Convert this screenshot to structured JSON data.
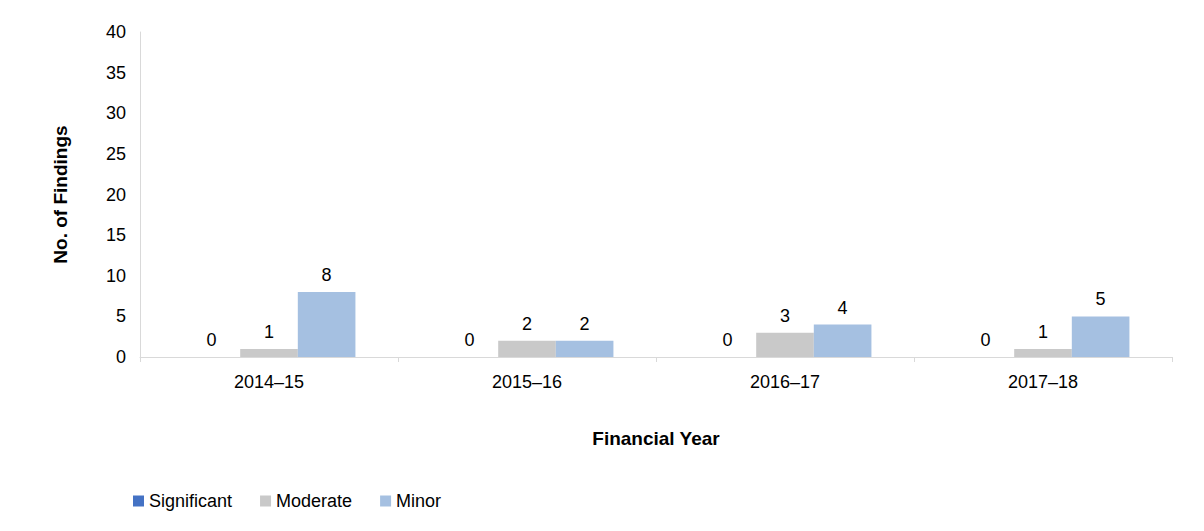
{
  "chart_data": {
    "type": "bar",
    "x_label": "Financial Year",
    "y_label": "No. of Findings",
    "categories": [
      "2014–15",
      "2015–16",
      "2016–17",
      "2017–18"
    ],
    "series": [
      {
        "name": "Significant",
        "color": "#4472c4",
        "values": [
          0,
          0,
          0,
          0
        ]
      },
      {
        "name": "Moderate",
        "color": "#c9c9c9",
        "values": [
          1,
          2,
          3,
          1
        ]
      },
      {
        "name": "Minor",
        "color": "#a5c0e1",
        "values": [
          8,
          2,
          4,
          5
        ]
      }
    ],
    "ylim": [
      0,
      40
    ],
    "yticks": [
      0,
      5,
      10,
      15,
      20,
      25,
      30,
      35,
      40
    ],
    "grid": false,
    "data_labels": true,
    "legend": "bottom"
  }
}
